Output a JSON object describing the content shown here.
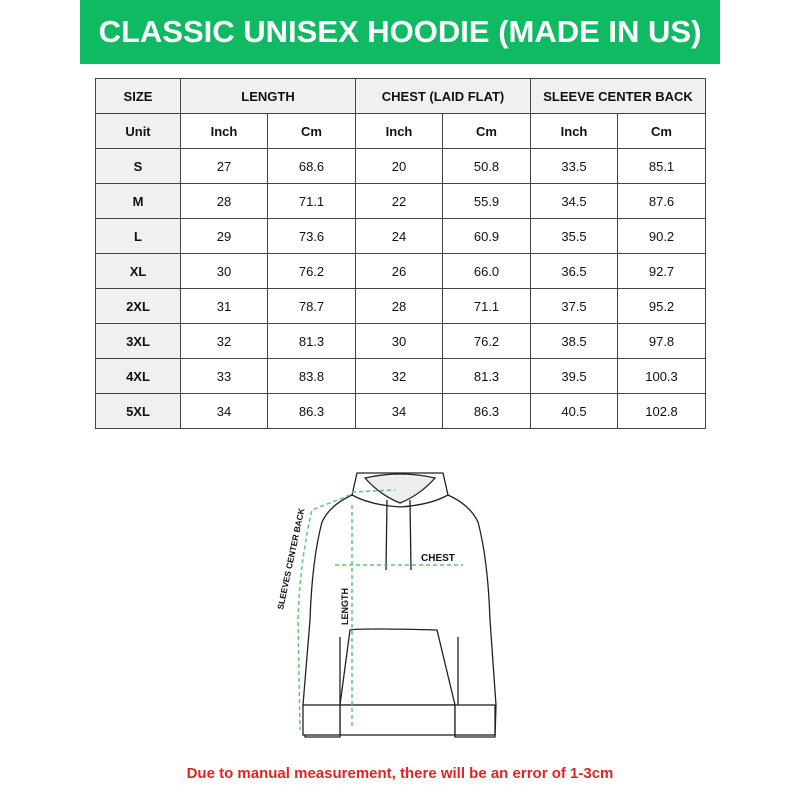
{
  "title": "CLASSIC UNISEX HOODIE (MADE IN US)",
  "table": {
    "headers": [
      "SIZE",
      "LENGTH",
      "CHEST (LAID FLAT)",
      "SLEEVE CENTER BACK"
    ],
    "units": [
      "Unit",
      "Inch",
      "Cm",
      "Inch",
      "Cm",
      "Inch",
      "Cm"
    ],
    "rows": [
      [
        "S",
        "27",
        "68.6",
        "20",
        "50.8",
        "33.5",
        "85.1"
      ],
      [
        "M",
        "28",
        "71.1",
        "22",
        "55.9",
        "34.5",
        "87.6"
      ],
      [
        "L",
        "29",
        "73.6",
        "24",
        "60.9",
        "35.5",
        "90.2"
      ],
      [
        "XL",
        "30",
        "76.2",
        "26",
        "66.0",
        "36.5",
        "92.7"
      ],
      [
        "2XL",
        "31",
        "78.7",
        "28",
        "71.1",
        "37.5",
        "95.2"
      ],
      [
        "3XL",
        "32",
        "81.3",
        "30",
        "76.2",
        "38.5",
        "97.8"
      ],
      [
        "4XL",
        "33",
        "83.8",
        "32",
        "81.3",
        "39.5",
        "100.3"
      ],
      [
        "5XL",
        "34",
        "86.3",
        "34",
        "86.3",
        "40.5",
        "102.8"
      ]
    ]
  },
  "diagram": {
    "chest_label": "CHEST",
    "length_label": "LENGTH",
    "sleeve_label": "SLEEVES CENTER BACK",
    "arrow_color": "#5cc96f"
  },
  "note": "Due to manual measurement, there will be an error of 1-3cm",
  "colors": {
    "banner": "#0fba63",
    "note": "#e02424"
  }
}
